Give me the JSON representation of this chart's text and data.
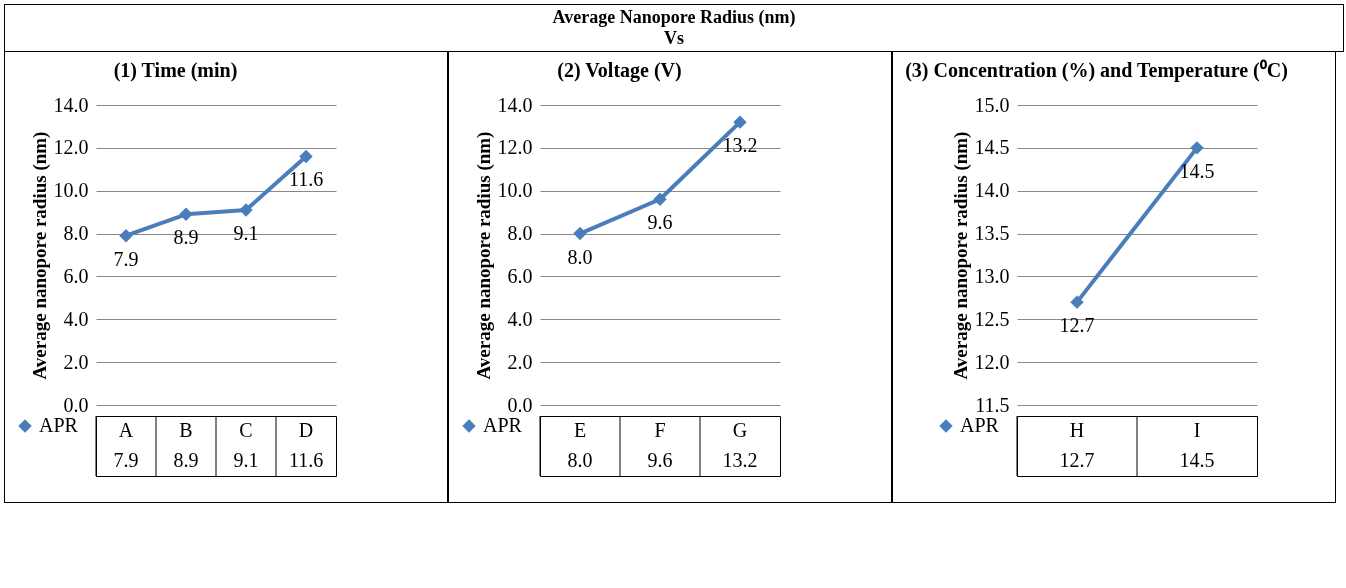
{
  "chart_data": [
    {
      "type": "line",
      "title": "(1)  Time (min)",
      "annotations": [
        "Average Nanopore Radius (nm)\nVs"
      ],
      "ylabel": "Average nanopore radius (nm)",
      "categories": [
        "A",
        "B",
        "C",
        "D"
      ],
      "series": [
        {
          "name": "APR",
          "color": "#4a7ebb",
          "values": [
            7.9,
            8.9,
            9.1,
            11.6
          ],
          "value_labels": [
            "7.9",
            "8.9",
            "9.1",
            "11.6"
          ]
        }
      ],
      "ylim": [
        0,
        14
      ],
      "yticks": [
        {
          "value": 0,
          "label": "0.0"
        },
        {
          "value": 2,
          "label": "2.0"
        },
        {
          "value": 4,
          "label": "4.0"
        },
        {
          "value": 6,
          "label": "6.0"
        },
        {
          "value": 8,
          "label": "8.0"
        },
        {
          "value": 10,
          "label": "10.0"
        },
        {
          "value": 12,
          "label": "12.0"
        },
        {
          "value": 14,
          "label": "14.0"
        }
      ],
      "grid": "y",
      "marker": "diamond",
      "legend": "bottom"
    },
    {
      "type": "line",
      "title": "(2)  Voltage (V)",
      "ylabel": "Average nanopore radius (nm)",
      "categories": [
        "E",
        "F",
        "G"
      ],
      "series": [
        {
          "name": "APR",
          "color": "#4a7ebb",
          "values": [
            8.0,
            9.6,
            13.2
          ],
          "value_labels": [
            "8.0",
            "9.6",
            "13.2"
          ]
        }
      ],
      "ylim": [
        0,
        14
      ],
      "yticks": [
        {
          "value": 0,
          "label": "0.0"
        },
        {
          "value": 2,
          "label": "2.0"
        },
        {
          "value": 4,
          "label": "4.0"
        },
        {
          "value": 6,
          "label": "6.0"
        },
        {
          "value": 8,
          "label": "8.0"
        },
        {
          "value": 10,
          "label": "10.0"
        },
        {
          "value": 12,
          "label": "12.0"
        },
        {
          "value": 14,
          "label": "14.0"
        }
      ],
      "grid": "y",
      "marker": "diamond",
      "legend": "bottom"
    },
    {
      "type": "line",
      "title": "(3)  Concentration (%) and Temperature (⁰C)",
      "ylabel": "Average nanopore radius (nm)",
      "categories": [
        "H",
        "I"
      ],
      "series": [
        {
          "name": "APR",
          "color": "#4a7ebb",
          "values": [
            12.7,
            14.5
          ],
          "value_labels": [
            "12.7",
            "14.5"
          ]
        }
      ],
      "ylim": [
        11.5,
        15
      ],
      "yticks": [
        11.5,
        {
          "value": 12,
          "label": "12.0"
        },
        12.5,
        {
          "value": 13,
          "label": "13.0"
        },
        13.5,
        {
          "value": 14,
          "label": "14.0"
        },
        14.5,
        {
          "value": 15,
          "label": "15.0"
        }
      ],
      "grid": "y",
      "marker": "diamond",
      "legend": "bottom"
    }
  ]
}
